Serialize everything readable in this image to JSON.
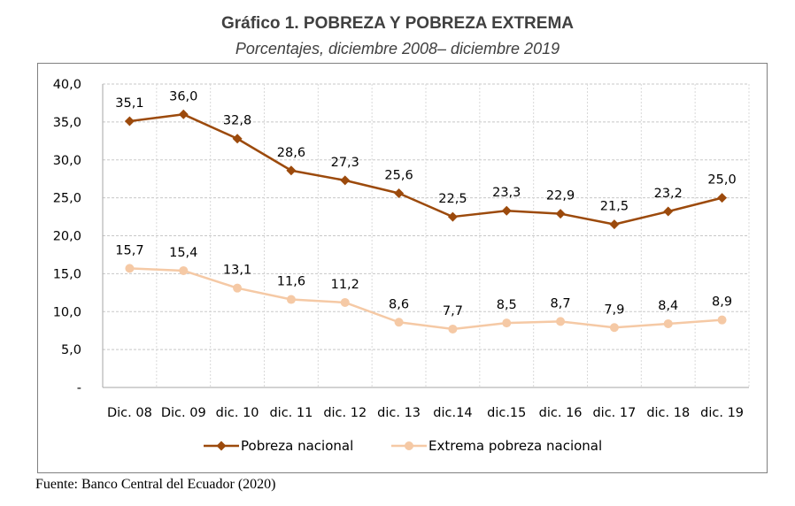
{
  "chart_data": {
    "type": "line",
    "title": "Gráfico 1. POBREZA Y POBREZA EXTREMA",
    "subtitle": "Porcentajes, diciembre 2008– diciembre 2019",
    "categories": [
      "Dic. 08",
      "Dic. 09",
      "dic. 10",
      "dic. 11",
      "dic. 12",
      "dic. 13",
      "dic.14",
      "dic.15",
      "dic. 16",
      "dic. 17",
      "dic. 18",
      "dic. 19"
    ],
    "y_tick_labels": [
      "-",
      "5,0",
      "10,0",
      "15,0",
      "20,0",
      "25,0",
      "30,0",
      "35,0",
      "40,0"
    ],
    "ylim": [
      0,
      40
    ],
    "grid": "horizontal",
    "legend_position": "bottom",
    "series": [
      {
        "name": "Pobreza nacional",
        "color": "#9c4a0c",
        "marker": "diamond",
        "values": [
          35.1,
          36.0,
          32.8,
          28.6,
          27.3,
          25.6,
          22.5,
          23.3,
          22.9,
          21.5,
          23.2,
          25.0
        ],
        "labels": [
          "35,1",
          "36,0",
          "32,8",
          "28,6",
          "27,3",
          "25,6",
          "22,5",
          "23,3",
          "22,9",
          "21,5",
          "23,2",
          "25,0"
        ]
      },
      {
        "name": "Extrema pobreza nacional",
        "color": "#f5c9a5",
        "marker": "circle",
        "values": [
          15.7,
          15.4,
          13.1,
          11.6,
          11.2,
          8.6,
          7.7,
          8.5,
          8.7,
          7.9,
          8.4,
          8.9
        ],
        "labels": [
          "15,7",
          "15,4",
          "13,1",
          "11,6",
          "11,2",
          "8,6",
          "7,7",
          "8,5",
          "8,7",
          "7,9",
          "8,4",
          "8,9"
        ]
      }
    ]
  },
  "source": "Fuente: Banco Central del Ecuador (2020)"
}
